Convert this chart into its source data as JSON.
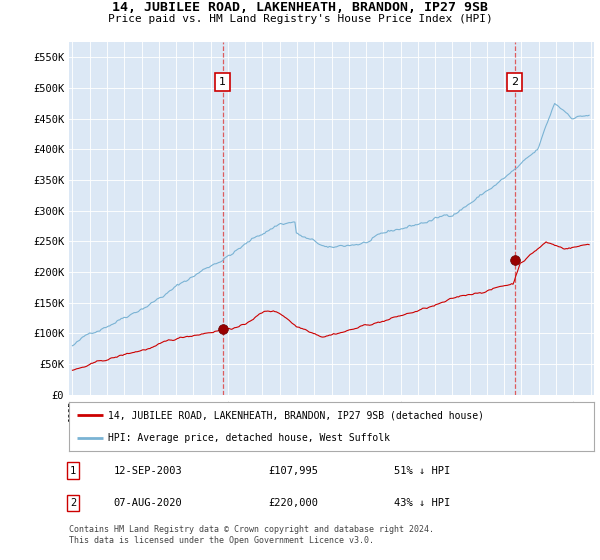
{
  "title": "14, JUBILEE ROAD, LAKENHEATH, BRANDON, IP27 9SB",
  "subtitle": "Price paid vs. HM Land Registry's House Price Index (HPI)",
  "background_color": "#ffffff",
  "plot_bg_color": "#dce8f5",
  "ylim": [
    0,
    575000
  ],
  "yticks": [
    0,
    50000,
    100000,
    150000,
    200000,
    250000,
    300000,
    350000,
    400000,
    450000,
    500000,
    550000
  ],
  "ytick_labels": [
    "£0",
    "£50K",
    "£100K",
    "£150K",
    "£200K",
    "£250K",
    "£300K",
    "£350K",
    "£400K",
    "£450K",
    "£500K",
    "£550K"
  ],
  "x_start_year": 1995,
  "x_end_year": 2025,
  "hpi_line_color": "#7ab3d4",
  "price_line_color": "#cc0000",
  "marker1_x": 2003.7,
  "marker1_price": 107995,
  "marker1_label": "1",
  "marker1_date_str": "12-SEP-2003",
  "marker1_price_str": "£107,995",
  "marker1_pct_str": "51% ↓ HPI",
  "marker2_x": 2020.6,
  "marker2_price": 220000,
  "marker2_label": "2",
  "marker2_date_str": "07-AUG-2020",
  "marker2_price_str": "£220,000",
  "marker2_pct_str": "43% ↓ HPI",
  "legend_line1": "14, JUBILEE ROAD, LAKENHEATH, BRANDON, IP27 9SB (detached house)",
  "legend_line2": "HPI: Average price, detached house, West Suffolk",
  "footnote": "Contains HM Land Registry data © Crown copyright and database right 2024.\nThis data is licensed under the Open Government Licence v3.0."
}
